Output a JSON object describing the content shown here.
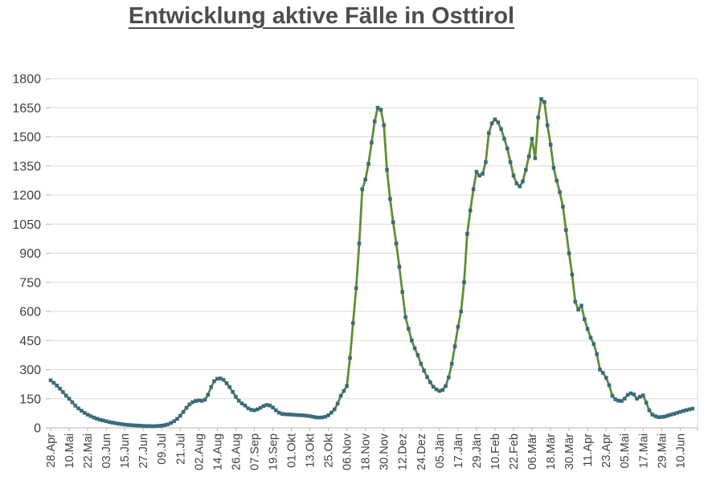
{
  "title": "Entwicklung aktive Fälle in Osttirol",
  "chart_data": {
    "type": "line",
    "title": "Entwicklung aktive Fälle in Osttirol",
    "xlabel": "",
    "ylabel": "",
    "ylim": [
      0,
      1800
    ],
    "y_ticks": [
      0,
      150,
      300,
      450,
      600,
      750,
      900,
      1050,
      1200,
      1350,
      1500,
      1650,
      1800
    ],
    "grid": "horizontal",
    "legend": "none",
    "marker_shape": "square",
    "line_color": "#5e8f32",
    "marker_color": "#3a6b7d",
    "gridline_color": "#d9d9d9",
    "axis_color": "#b3b3b3",
    "label_color": "#3f3f3f",
    "title_color": "#4d4d4d",
    "points_per_label": 6,
    "x_tick_labels": [
      "28.Apr",
      "10.Mai",
      "22.Mai",
      "03.Jun",
      "15.Jun",
      "27.Jun",
      "09.Jul",
      "21.Jul",
      "02.Aug",
      "14.Aug",
      "26.Aug",
      "07.Sep",
      "19.Sep",
      "01.Okt",
      "13.Okt",
      "25.Okt",
      "06.Nov",
      "18.Nov",
      "30.Nov",
      "12.Dez",
      "24.Dez",
      "05.Jän",
      "17.Jän",
      "29.Jän",
      "10.Feb",
      "22.Feb",
      "06.Mär",
      "18.Mär",
      "30.Mär",
      "11.Apr",
      "23.Apr",
      "05.Mai",
      "17.Mai",
      "29.Mai",
      "10.Jun"
    ],
    "series": [
      {
        "values": [
          245,
          232,
          218,
          202,
          184,
          166,
          150,
          132,
          114,
          100,
          88,
          77,
          68,
          60,
          53,
          47,
          42,
          38,
          34,
          30,
          27,
          24,
          21,
          19,
          17,
          15,
          14,
          13,
          12,
          11,
          10,
          9,
          9,
          8,
          9,
          10,
          11,
          14,
          18,
          25,
          34,
          46,
          62,
          82,
          103,
          121,
          132,
          138,
          141,
          139,
          145,
          170,
          210,
          240,
          253,
          255,
          248,
          230,
          210,
          185,
          160,
          140,
          125,
          115,
          100,
          93,
          90,
          95,
          103,
          112,
          118,
          115,
          105,
          90,
          78,
          72,
          70,
          69,
          68,
          67,
          66,
          65,
          64,
          62,
          60,
          57,
          54,
          53,
          54,
          57,
          65,
          78,
          95,
          125,
          165,
          190,
          215,
          360,
          540,
          720,
          950,
          1230,
          1280,
          1360,
          1470,
          1580,
          1650,
          1640,
          1560,
          1330,
          1180,
          1060,
          950,
          830,
          700,
          570,
          510,
          450,
          410,
          375,
          330,
          295,
          262,
          235,
          212,
          198,
          190,
          195,
          215,
          260,
          330,
          420,
          520,
          600,
          750,
          1000,
          1120,
          1230,
          1320,
          1300,
          1310,
          1370,
          1520,
          1570,
          1590,
          1575,
          1540,
          1490,
          1440,
          1370,
          1300,
          1260,
          1245,
          1270,
          1330,
          1400,
          1490,
          1390,
          1600,
          1695,
          1680,
          1560,
          1460,
          1340,
          1275,
          1215,
          1140,
          1020,
          900,
          790,
          650,
          610,
          630,
          560,
          510,
          465,
          432,
          380,
          300,
          283,
          258,
          220,
          165,
          147,
          140,
          138,
          150,
          170,
          178,
          172,
          150,
          160,
          167,
          130,
          90,
          68,
          60,
          55,
          56,
          58,
          63,
          68,
          72,
          77,
          82,
          87,
          91,
          95,
          99
        ]
      }
    ]
  }
}
